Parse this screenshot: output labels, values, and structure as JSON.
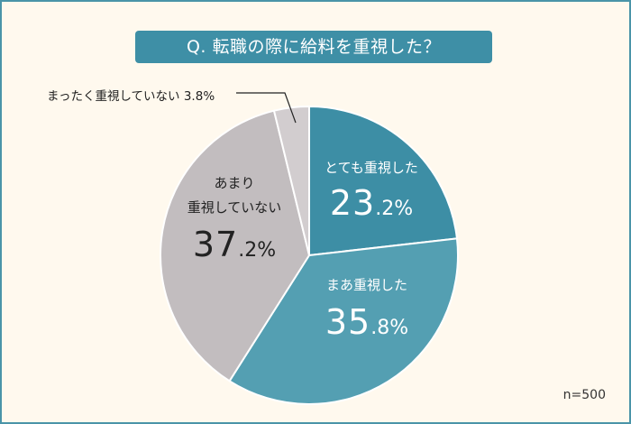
{
  "title": "Q. 転職の際に給料を重視した？",
  "sample_size": "n=500",
  "colors": {
    "background": "#fff9ee",
    "border": "#4a94a8",
    "title_bar": "#3e8fa6",
    "slice_very": "#3d8ea5",
    "slice_somewhat": "#549fb2",
    "slice_not_much": "#c2bdbf",
    "slice_not_at_all": "#d2cdcf"
  },
  "labels": {
    "very": {
      "name": "とても重視した",
      "big": "23",
      "small": ".2%"
    },
    "somewhat": {
      "name": "まあ重視した",
      "big": "35",
      "small": ".8%"
    },
    "not_much": {
      "name1": "あまり",
      "name2": "重視していない",
      "big": "37",
      "small": ".2%"
    },
    "not_at_all": {
      "text": "まったく重視していない 3.8%"
    }
  },
  "chart_data": {
    "type": "pie",
    "title": "Q. 転職の際に給料を重視した？",
    "categories": [
      "とても重視した",
      "まあ重視した",
      "あまり重視していない",
      "まったく重視していない"
    ],
    "values": [
      23.2,
      35.8,
      37.2,
      3.8
    ],
    "unit": "%",
    "start_angle": "12 o'clock",
    "direction": "clockwise",
    "note": "n=500",
    "legend": "none (direct labels)"
  }
}
